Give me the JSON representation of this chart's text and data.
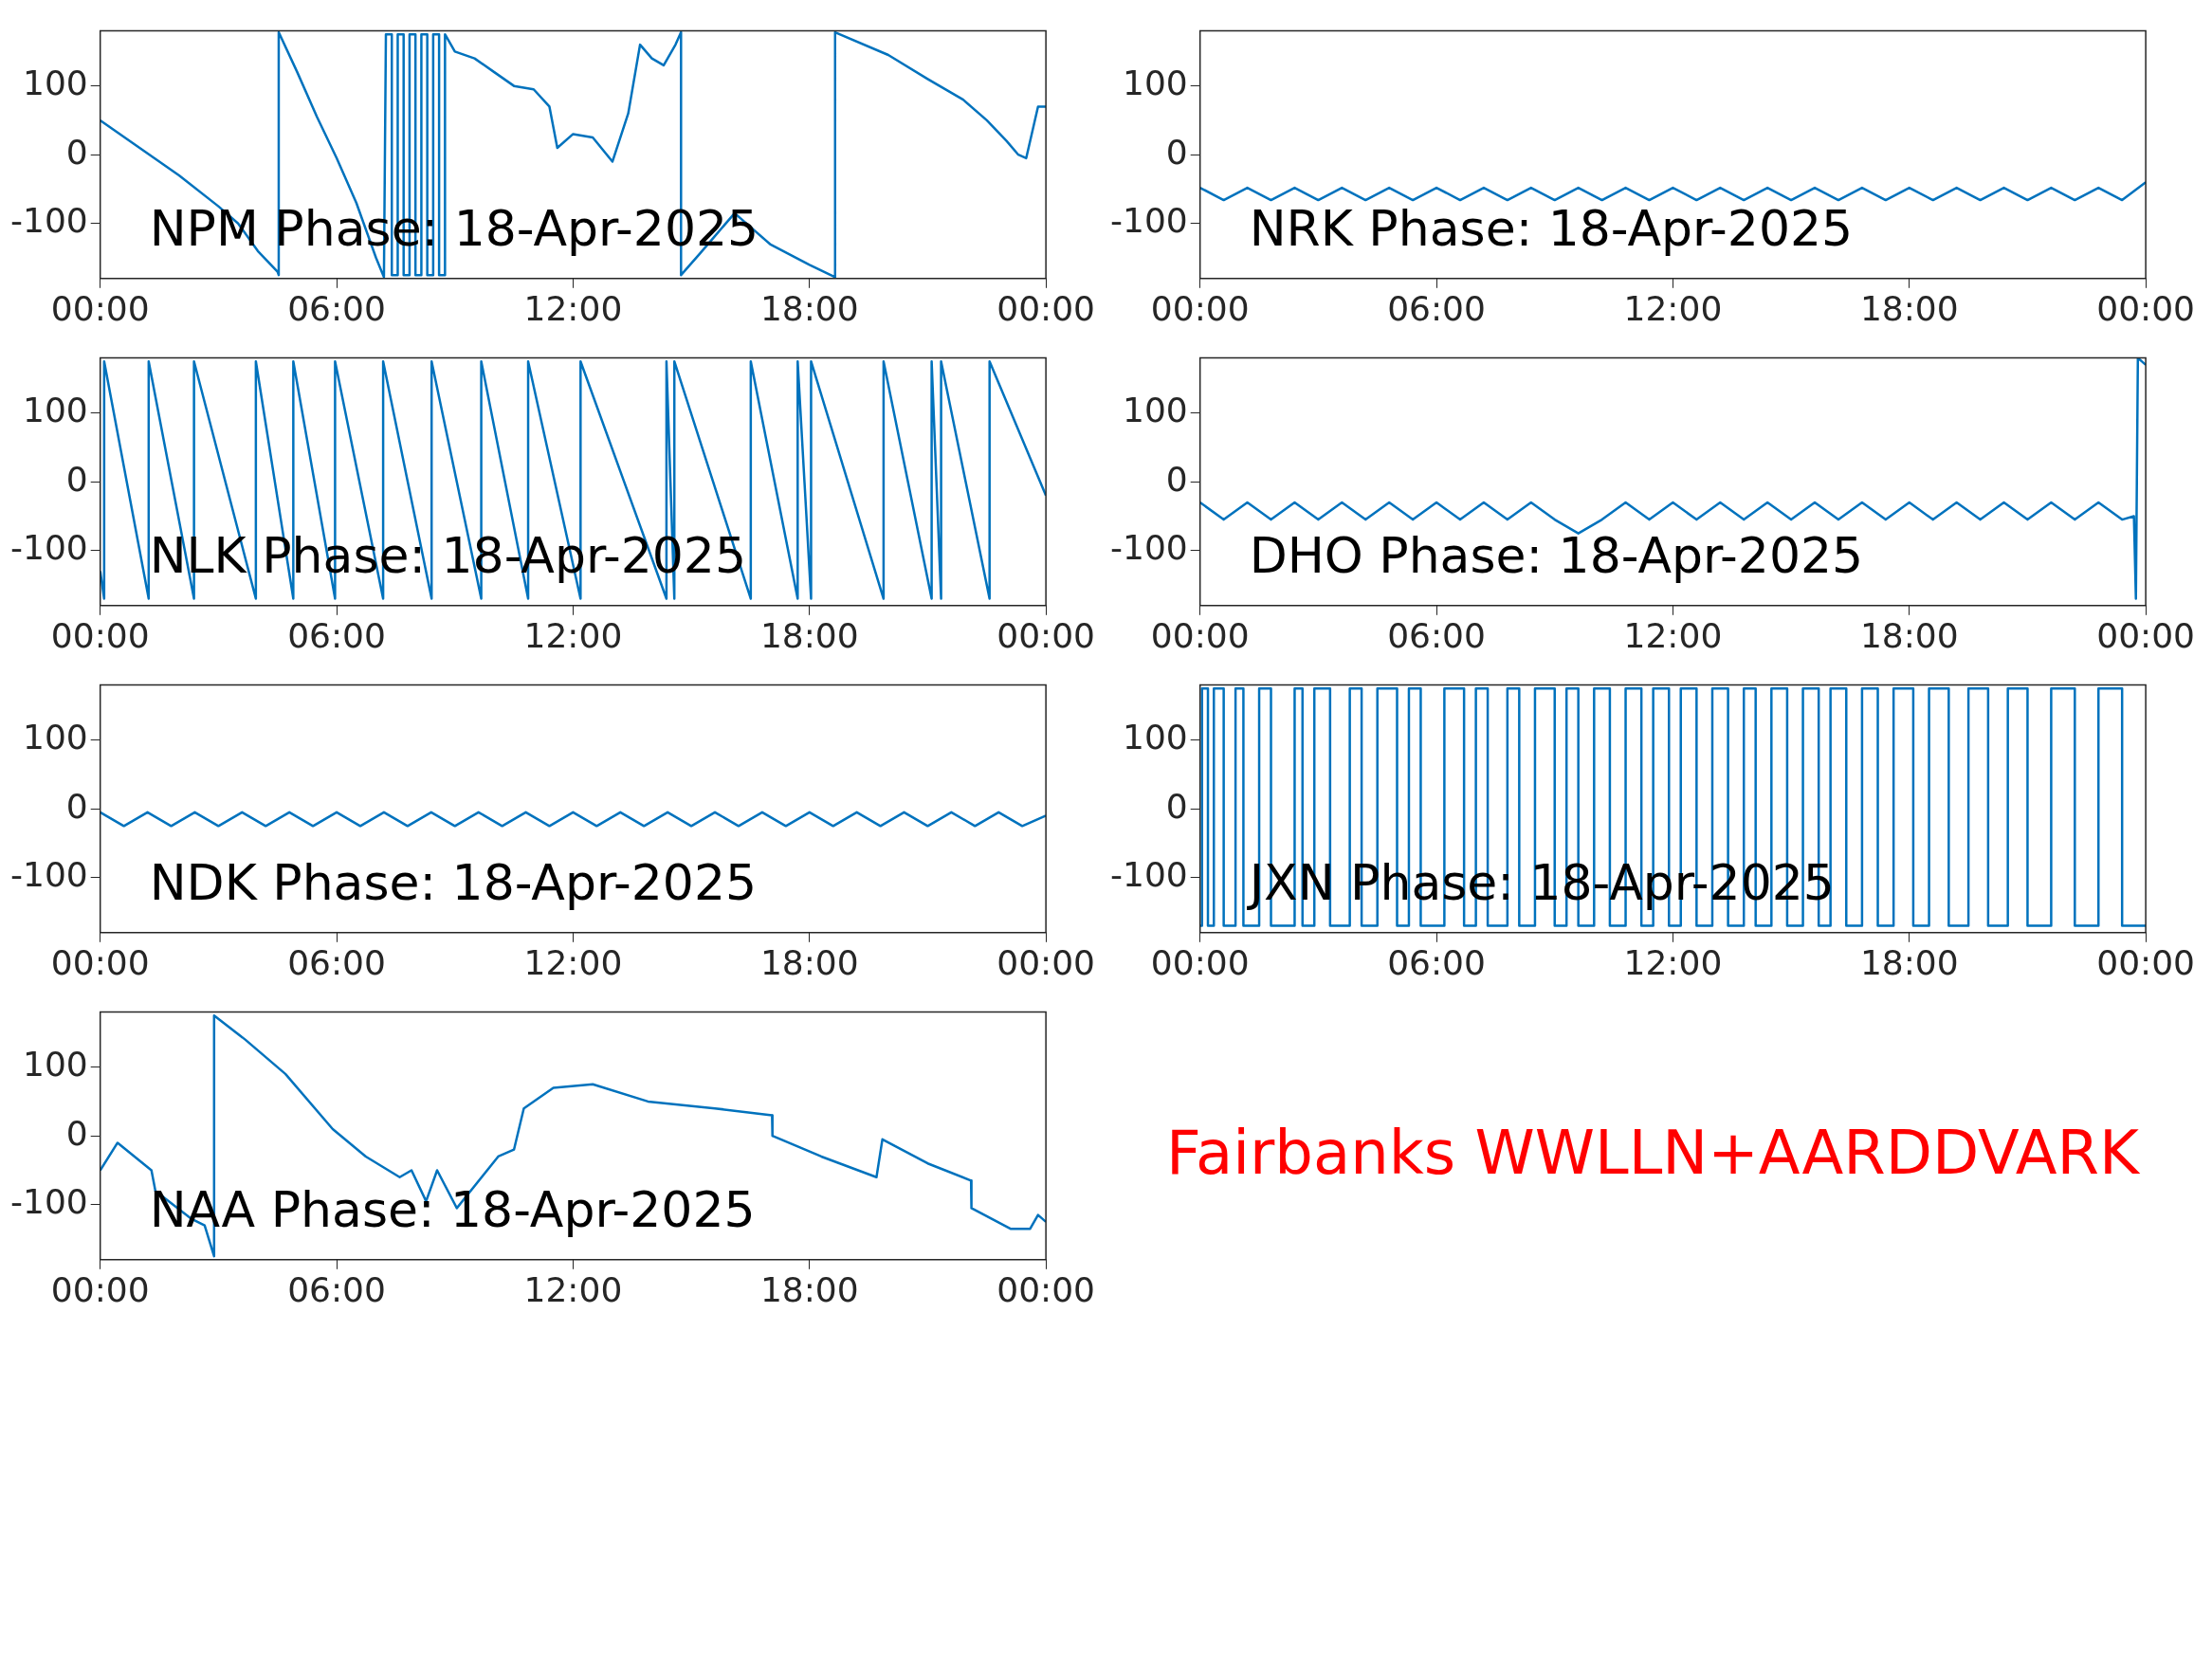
{
  "chart_data": [
    {
      "type": "line",
      "title": "NPM Phase: 18-Apr-2025",
      "color": "#0072bd",
      "xlim": [
        0,
        24
      ],
      "ylim": [
        -180,
        180
      ],
      "yticks": [
        -100,
        0,
        100
      ],
      "xticks": [
        {
          "value": 0,
          "label": "00:00"
        },
        {
          "value": 6,
          "label": "06:00"
        },
        {
          "value": 12,
          "label": "12:00"
        },
        {
          "value": 18,
          "label": "18:00"
        },
        {
          "value": 24,
          "label": "00:00"
        }
      ],
      "x": [
        0,
        1,
        2,
        3,
        3.5,
        4,
        4.5,
        4.53,
        4.53,
        5,
        5.5,
        6,
        6.5,
        7,
        7.2,
        7.25,
        7.4,
        7.4,
        7.55,
        7.55,
        7.7,
        7.7,
        7.85,
        7.85,
        8,
        8,
        8.15,
        8.15,
        8.3,
        8.3,
        8.45,
        8.45,
        8.6,
        8.6,
        8.75,
        8.75,
        9,
        9.5,
        10,
        10.5,
        11,
        11.4,
        11.6,
        12,
        12.5,
        13,
        13.4,
        13.7,
        14,
        14.3,
        14.6,
        14.74,
        14.74,
        15.2,
        15.5,
        16.1,
        17,
        18,
        18.65,
        18.65,
        20,
        21,
        21.9,
        22.5,
        23,
        23.3,
        23.5,
        23.8,
        24
      ],
      "values": [
        50,
        10,
        -30,
        -75,
        -100,
        -140,
        -170,
        -175,
        178,
        120,
        55,
        -5,
        -70,
        -150,
        -178,
        175,
        175,
        -175,
        -175,
        175,
        175,
        -175,
        -175,
        175,
        175,
        -175,
        -175,
        175,
        175,
        -175,
        -175,
        175,
        175,
        -175,
        -175,
        175,
        150,
        140,
        120,
        100,
        95,
        70,
        10,
        30,
        25,
        -10,
        60,
        160,
        140,
        130,
        160,
        178,
        -175,
        -145,
        -125,
        -85,
        -130,
        -160,
        -178,
        178,
        145,
        110,
        80,
        50,
        20,
        0,
        -5,
        70,
        70
      ]
    },
    {
      "type": "line",
      "title": "NRK Phase: 18-Apr-2025",
      "color": "#0072bd",
      "xlim": [
        0,
        24
      ],
      "ylim": [
        -180,
        180
      ],
      "yticks": [
        -100,
        0,
        100
      ],
      "xticks": [
        {
          "value": 0,
          "label": "00:00"
        },
        {
          "value": 6,
          "label": "06:00"
        },
        {
          "value": 12,
          "label": "12:00"
        },
        {
          "value": 18,
          "label": "18:00"
        },
        {
          "value": 24,
          "label": "00:00"
        }
      ],
      "x": [
        0,
        0.6,
        1.2,
        1.8,
        2.4,
        3,
        3.6,
        4.2,
        4.8,
        5.4,
        6,
        6.6,
        7.2,
        7.8,
        8.4,
        9,
        9.6,
        10.2,
        10.8,
        11.4,
        12,
        12.6,
        13.2,
        13.8,
        14.4,
        15,
        15.6,
        16.2,
        16.8,
        17.4,
        18,
        18.6,
        19.2,
        19.8,
        20.4,
        21,
        21.6,
        22.2,
        22.8,
        23.4,
        24
      ],
      "values": [
        -48,
        -66,
        -48,
        -66,
        -48,
        -66,
        -48,
        -66,
        -48,
        -66,
        -48,
        -66,
        -48,
        -66,
        -48,
        -66,
        -48,
        -66,
        -48,
        -66,
        -48,
        -66,
        -48,
        -66,
        -48,
        -66,
        -48,
        -66,
        -48,
        -66,
        -48,
        -66,
        -48,
        -66,
        -48,
        -66,
        -48,
        -66,
        -48,
        -66,
        -40
      ]
    },
    {
      "type": "line",
      "title": "NLK Phase: 18-Apr-2025",
      "color": "#0072bd",
      "xlim": [
        0,
        24
      ],
      "ylim": [
        -180,
        180
      ],
      "yticks": [
        -100,
        0,
        100
      ],
      "xticks": [
        {
          "value": 0,
          "label": "00:00"
        },
        {
          "value": 6,
          "label": "06:00"
        },
        {
          "value": 12,
          "label": "12:00"
        },
        {
          "value": 18,
          "label": "18:00"
        },
        {
          "value": 24,
          "label": "00:00"
        }
      ],
      "x": [
        0,
        0.1,
        0.1,
        1.23,
        1.23,
        2.38,
        2.38,
        3.95,
        3.95,
        4.9,
        4.9,
        5.96,
        5.96,
        7.18,
        7.18,
        8.41,
        8.41,
        9.67,
        9.67,
        10.86,
        10.86,
        12.19,
        12.19,
        14.37,
        14.37,
        14.57,
        14.57,
        16.51,
        16.51,
        17.7,
        17.7,
        18.04,
        18.04,
        19.88,
        19.88,
        21.1,
        21.1,
        21.34,
        21.34,
        22.57,
        22.57,
        24
      ],
      "values": [
        -130,
        -170,
        175,
        -170,
        175,
        -170,
        175,
        -170,
        175,
        -170,
        175,
        -170,
        175,
        -170,
        175,
        -170,
        175,
        -170,
        175,
        -170,
        175,
        -170,
        175,
        -170,
        175,
        -170,
        175,
        -170,
        175,
        -170,
        175,
        -170,
        175,
        -170,
        175,
        -170,
        175,
        -170,
        175,
        -170,
        175,
        -20
      ]
    },
    {
      "type": "line",
      "title": "DHO Phase: 18-Apr-2025",
      "color": "#0072bd",
      "xlim": [
        0,
        24
      ],
      "ylim": [
        -180,
        180
      ],
      "yticks": [
        -100,
        0,
        100
      ],
      "xticks": [
        {
          "value": 0,
          "label": "00:00"
        },
        {
          "value": 6,
          "label": "06:00"
        },
        {
          "value": 12,
          "label": "12:00"
        },
        {
          "value": 18,
          "label": "18:00"
        },
        {
          "value": 24,
          "label": "00:00"
        }
      ],
      "x": [
        0,
        0.6,
        1.2,
        1.8,
        2.4,
        3,
        3.6,
        4.2,
        4.8,
        5.4,
        6,
        6.6,
        7.2,
        7.8,
        8.4,
        9,
        9.6,
        10.2,
        10.8,
        11.4,
        12,
        12.6,
        13.2,
        13.8,
        14.4,
        15,
        15.6,
        16.2,
        16.8,
        17.4,
        18,
        18.6,
        19.2,
        19.8,
        20.4,
        21,
        21.6,
        22.2,
        22.8,
        23.4,
        23.7,
        23.75,
        23.8,
        24
      ],
      "values": [
        -30,
        -55,
        -30,
        -55,
        -30,
        -55,
        -30,
        -55,
        -30,
        -55,
        -30,
        -55,
        -30,
        -55,
        -30,
        -55,
        -75,
        -55,
        -30,
        -55,
        -30,
        -55,
        -30,
        -55,
        -30,
        -55,
        -30,
        -55,
        -30,
        -55,
        -30,
        -55,
        -30,
        -55,
        -30,
        -55,
        -30,
        -55,
        -30,
        -55,
        -50,
        -170,
        180,
        170
      ]
    },
    {
      "type": "line",
      "title": "NDK Phase: 18-Apr-2025",
      "color": "#0072bd",
      "xlim": [
        0,
        24
      ],
      "ylim": [
        -180,
        180
      ],
      "yticks": [
        -100,
        0,
        100
      ],
      "xticks": [
        {
          "value": 0,
          "label": "00:00"
        },
        {
          "value": 6,
          "label": "06:00"
        },
        {
          "value": 12,
          "label": "12:00"
        },
        {
          "value": 18,
          "label": "18:00"
        },
        {
          "value": 24,
          "label": "00:00"
        }
      ],
      "x": [
        0,
        0.6,
        1.2,
        1.8,
        2.4,
        3,
        3.6,
        4.2,
        4.8,
        5.4,
        6,
        6.6,
        7.2,
        7.8,
        8.4,
        9,
        9.6,
        10.2,
        10.8,
        11.4,
        12,
        12.6,
        13.2,
        13.8,
        14.4,
        15,
        15.6,
        16.2,
        16.8,
        17.4,
        18,
        18.6,
        19.2,
        19.8,
        20.4,
        21,
        21.6,
        22.2,
        22.8,
        23.4,
        24
      ],
      "values": [
        -5,
        -25,
        -5,
        -25,
        -5,
        -25,
        -5,
        -25,
        -5,
        -25,
        -5,
        -25,
        -5,
        -25,
        -5,
        -25,
        -5,
        -25,
        -5,
        -25,
        -5,
        -25,
        -5,
        -25,
        -5,
        -25,
        -5,
        -25,
        -5,
        -25,
        -5,
        -25,
        -5,
        -25,
        -5,
        -25,
        -5,
        -25,
        -5,
        -25,
        -10
      ]
    },
    {
      "type": "line",
      "title": "JXN Phase: 18-Apr-2025",
      "color": "#0072bd",
      "xlim": [
        0,
        24
      ],
      "ylim": [
        -180,
        180
      ],
      "yticks": [
        -100,
        0,
        100
      ],
      "xticks": [
        {
          "value": 0,
          "label": "00:00"
        },
        {
          "value": 6,
          "label": "06:00"
        },
        {
          "value": 12,
          "label": "12:00"
        },
        {
          "value": 18,
          "label": "18:00"
        },
        {
          "value": 24,
          "label": "00:00"
        }
      ],
      "x": [
        0,
        0.05,
        0.05,
        0.2,
        0.2,
        0.35,
        0.35,
        0.6,
        0.6,
        0.9,
        0.9,
        1.1,
        1.1,
        1.5,
        1.5,
        1.8,
        1.8,
        2.4,
        2.4,
        2.6,
        2.6,
        2.9,
        2.9,
        3.3,
        3.3,
        3.8,
        3.8,
        4.1,
        4.1,
        4.5,
        4.5,
        5,
        5,
        5.3,
        5.3,
        5.6,
        5.6,
        6.2,
        6.2,
        6.7,
        6.7,
        7,
        7,
        7.3,
        7.3,
        7.8,
        7.8,
        8.1,
        8.1,
        8.5,
        8.5,
        9,
        9,
        9.3,
        9.3,
        9.6,
        9.6,
        10,
        10,
        10.4,
        10.4,
        10.8,
        10.8,
        11.2,
        11.2,
        11.5,
        11.5,
        11.9,
        11.9,
        12.2,
        12.2,
        12.6,
        12.6,
        13,
        13,
        13.4,
        13.4,
        13.8,
        13.8,
        14.1,
        14.1,
        14.5,
        14.5,
        14.9,
        14.9,
        15.3,
        15.3,
        15.7,
        15.7,
        16,
        16,
        16.4,
        16.4,
        16.8,
        16.8,
        17.2,
        17.2,
        17.6,
        17.6,
        18.1,
        18.1,
        18.5,
        18.5,
        19,
        19,
        19.5,
        19.5,
        20,
        20,
        20.5,
        20.5,
        21,
        21,
        21.6,
        21.6,
        22.2,
        22.2,
        22.8,
        22.8,
        23.4,
        23.4,
        24
      ],
      "values": [
        -170,
        -170,
        175,
        175,
        -170,
        -170,
        175,
        175,
        -170,
        -170,
        175,
        175,
        -170,
        -170,
        175,
        175,
        -170,
        -170,
        175,
        175,
        -170,
        -170,
        175,
        175,
        -170,
        -170,
        175,
        175,
        -170,
        -170,
        175,
        175,
        -170,
        -170,
        175,
        175,
        -170,
        -170,
        175,
        175,
        -170,
        -170,
        175,
        175,
        -170,
        -170,
        175,
        175,
        -170,
        -170,
        175,
        175,
        -170,
        -170,
        175,
        175,
        -170,
        -170,
        175,
        175,
        -170,
        -170,
        175,
        175,
        -170,
        -170,
        175,
        175,
        -170,
        -170,
        175,
        175,
        -170,
        -170,
        175,
        175,
        -170,
        -170,
        175,
        175,
        -170,
        -170,
        175,
        175,
        -170,
        -170,
        175,
        175,
        -170,
        -170,
        175,
        175,
        -170,
        -170,
        175,
        175,
        -170,
        -170,
        175,
        175,
        -170,
        -170,
        175,
        175,
        -170,
        -170,
        175,
        175,
        -170,
        -170,
        175,
        175,
        -170,
        -170,
        175,
        175,
        -170,
        -170,
        175,
        175,
        -170,
        -170
      ]
    },
    {
      "type": "line",
      "title": "NAA Phase: 18-Apr-2025",
      "color": "#0072bd",
      "xlim": [
        0,
        24
      ],
      "ylim": [
        -180,
        180
      ],
      "yticks": [
        -100,
        0,
        100
      ],
      "xticks": [
        {
          "value": 0,
          "label": "00:00"
        },
        {
          "value": 6,
          "label": "06:00"
        },
        {
          "value": 12,
          "label": "12:00"
        },
        {
          "value": 18,
          "label": "18:00"
        },
        {
          "value": 24,
          "label": "00:00"
        }
      ],
      "x": [
        0,
        0.44,
        1.3,
        1.4,
        2.3,
        2.65,
        2.89,
        2.89,
        3.68,
        4.7,
        5.9,
        6.74,
        7.6,
        7.9,
        8.27,
        8.55,
        9.05,
        10.1,
        10.5,
        10.75,
        11.5,
        12.5,
        13.9,
        15.6,
        17.05,
        17.06,
        18.3,
        19.7,
        19.85,
        21,
        22.1,
        22.11,
        23.1,
        23.6,
        23.8,
        24
      ],
      "values": [
        -50,
        -10,
        -50,
        -80,
        -120,
        -130,
        -175,
        175,
        140,
        90,
        10,
        -30,
        -60,
        -50,
        -95,
        -50,
        -105,
        -30,
        -20,
        40,
        70,
        75,
        50,
        40,
        30,
        0,
        -30,
        -60,
        -5,
        -40,
        -65,
        -105,
        -135,
        -135,
        -115,
        -125
      ]
    },
    {
      "type": "other",
      "title": "Fairbanks WWLLN+AARDDVARK"
    }
  ]
}
